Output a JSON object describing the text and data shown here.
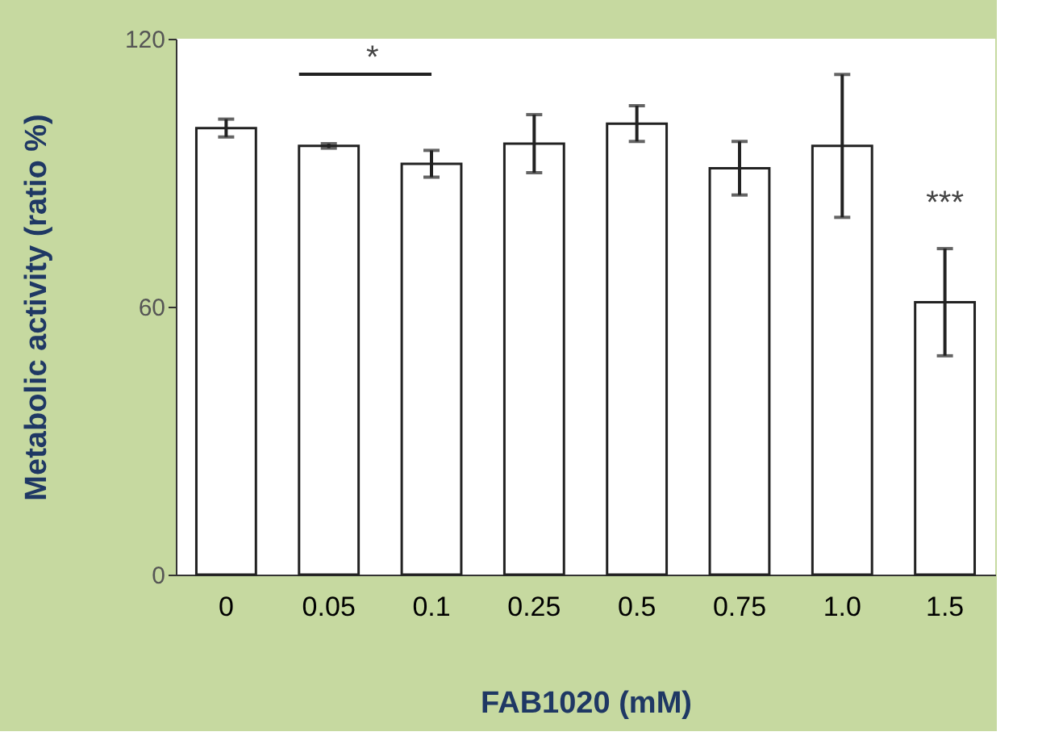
{
  "chart_data": {
    "type": "bar",
    "xlabel": "FAB1020 (mM)",
    "ylabel": "Metabolic activity (ratio %)",
    "categories": [
      "0",
      "0.05",
      "0.1",
      "0.25",
      "0.5",
      "0.75",
      "1.0",
      "1.5"
    ],
    "values": [
      100,
      96,
      92,
      96.5,
      101,
      91,
      96,
      61
    ],
    "errors": [
      2,
      0.5,
      3,
      6.5,
      4,
      6,
      16,
      12
    ],
    "color": "#ffffff",
    "ylim": [
      0,
      120
    ],
    "yticks": [
      0,
      60,
      120
    ],
    "grid": false,
    "annotations": [
      "*",
      "***"
    ]
  }
}
